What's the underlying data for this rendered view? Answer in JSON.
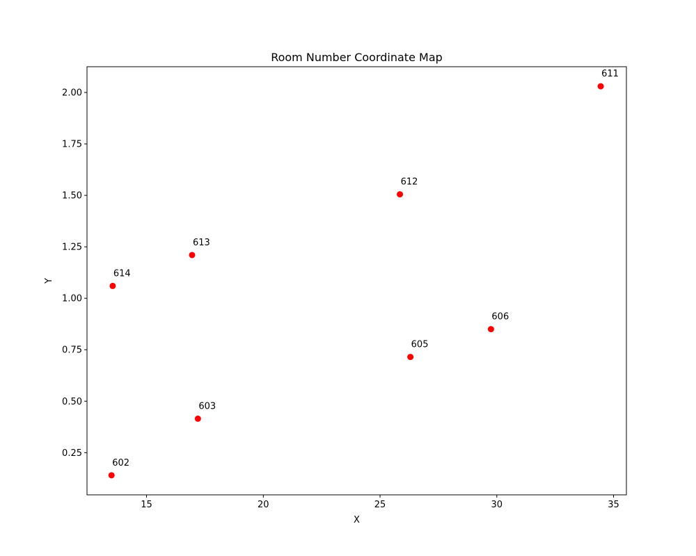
{
  "chart_data": {
    "type": "scatter",
    "title": "Room Number Coordinate Map",
    "xlabel": "X",
    "ylabel": "Y",
    "xlim": [
      12.45,
      35.55
    ],
    "ylim": [
      0.045,
      2.125
    ],
    "xticks": [
      15,
      20,
      25,
      30,
      35
    ],
    "yticks": [
      0.25,
      0.5,
      0.75,
      1.0,
      1.25,
      1.5,
      1.75,
      2.0
    ],
    "xtick_labels": [
      "15",
      "20",
      "25",
      "30",
      "35"
    ],
    "ytick_labels": [
      "0.25",
      "0.50",
      "0.75",
      "1.00",
      "1.25",
      "1.50",
      "1.75",
      "2.00"
    ],
    "grid": false,
    "marker_color": "#ff0000",
    "points": [
      {
        "label": "611",
        "x": 34.45,
        "y": 2.03
      },
      {
        "label": "612",
        "x": 25.85,
        "y": 1.505
      },
      {
        "label": "613",
        "x": 16.95,
        "y": 1.21
      },
      {
        "label": "614",
        "x": 13.55,
        "y": 1.06
      },
      {
        "label": "606",
        "x": 29.75,
        "y": 0.85
      },
      {
        "label": "605",
        "x": 26.3,
        "y": 0.715
      },
      {
        "label": "603",
        "x": 17.2,
        "y": 0.415
      },
      {
        "label": "602",
        "x": 13.5,
        "y": 0.14
      }
    ]
  }
}
